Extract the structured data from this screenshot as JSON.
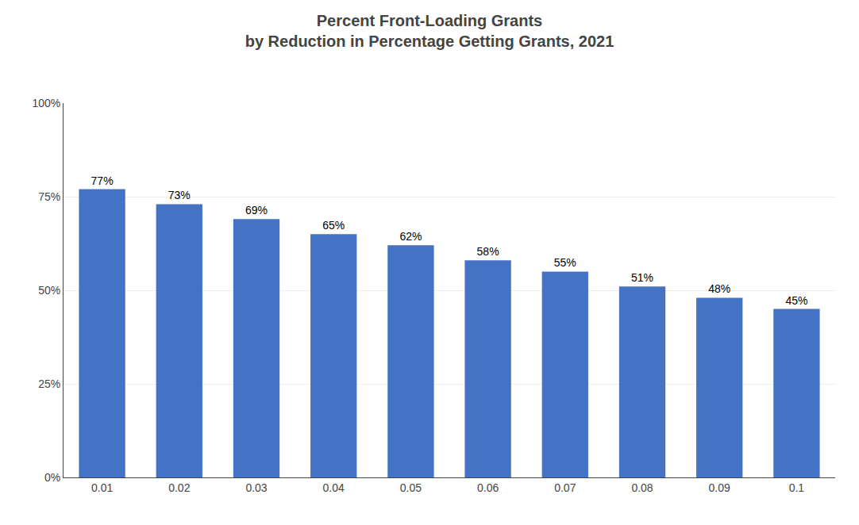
{
  "chart_data": {
    "type": "bar",
    "title": "Percent Front-Loading Grants",
    "subtitle": "by Reduction in Percentage Getting Grants, 2021",
    "categories": [
      "0.01",
      "0.02",
      "0.03",
      "0.04",
      "0.05",
      "0.06",
      "0.07",
      "0.08",
      "0.09",
      "0.1"
    ],
    "values": [
      0.77,
      0.73,
      0.69,
      0.65,
      0.62,
      0.58,
      0.55,
      0.51,
      0.48,
      0.45
    ],
    "value_labels": [
      "77%",
      "73%",
      "69%",
      "65%",
      "62%",
      "58%",
      "55%",
      "51%",
      "48%",
      "45%"
    ],
    "data_labels": true,
    "color": "#4472C4",
    "ylim": [
      0,
      1.0
    ],
    "yticks": [
      {
        "value": 0,
        "label": "0%"
      },
      {
        "value": 0.25,
        "label": "25%"
      },
      {
        "value": 0.5,
        "label": "50%"
      },
      {
        "value": 0.75,
        "label": "75%"
      },
      {
        "value": 1.0,
        "label": "100%"
      }
    ],
    "grid": true
  }
}
